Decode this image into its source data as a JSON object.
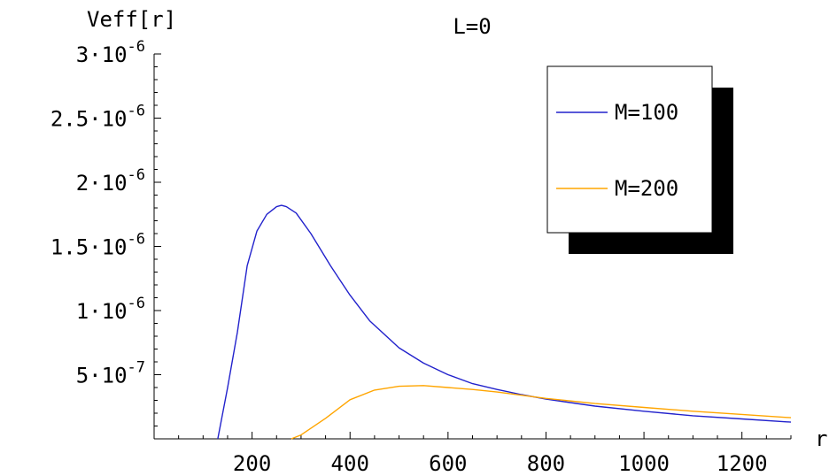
{
  "chart_data": {
    "type": "line",
    "title": "L=0",
    "xlabel": "r",
    "ylabel": "Veff[r]",
    "xlim": [
      0,
      1300
    ],
    "ylim": [
      0,
      3e-06
    ],
    "x_ticks": [
      {
        "value": 200,
        "label": "200"
      },
      {
        "value": 400,
        "label": "400"
      },
      {
        "value": 600,
        "label": "600"
      },
      {
        "value": 800,
        "label": "800"
      },
      {
        "value": 1000,
        "label": "1000"
      },
      {
        "value": 1200,
        "label": "1200"
      }
    ],
    "y_ticks": [
      {
        "value": 5e-07,
        "mantissa": "5·10",
        "exponent": "-7"
      },
      {
        "value": 1e-06,
        "mantissa": "1·10",
        "exponent": "-6"
      },
      {
        "value": 1.5e-06,
        "mantissa": "1.5·10",
        "exponent": "-6"
      },
      {
        "value": 2e-06,
        "mantissa": "2·10",
        "exponent": "-6"
      },
      {
        "value": 2.5e-06,
        "mantissa": "2.5·10",
        "exponent": "-6"
      },
      {
        "value": 3e-06,
        "mantissa": "3·10",
        "exponent": "-6"
      }
    ],
    "legend_position": "top-right",
    "series": [
      {
        "name": "M=100",
        "color": "#2222cc",
        "x": [
          130,
          150,
          170,
          190,
          210,
          230,
          250,
          260,
          270,
          290,
          320,
          360,
          400,
          440,
          500,
          550,
          600,
          650,
          700,
          750,
          800,
          900,
          1000,
          1100,
          1200,
          1300
        ],
        "y": [
          0,
          4e-07,
          8.3e-07,
          1.35e-06,
          1.62e-06,
          1.75e-06,
          1.81e-06,
          1.82e-06,
          1.81e-06,
          1.76e-06,
          1.6e-06,
          1.35e-06,
          1.12e-06,
          9.2e-07,
          7.1e-07,
          5.9e-07,
          5e-07,
          4.3e-07,
          3.85e-07,
          3.45e-07,
          3.1e-07,
          2.55e-07,
          2.15e-07,
          1.8e-07,
          1.55e-07,
          1.3e-07
        ]
      },
      {
        "name": "M=200",
        "color": "#ffa500",
        "x": [
          280,
          300,
          350,
          400,
          450,
          500,
          550,
          600,
          650,
          700,
          750,
          800,
          900,
          1000,
          1100,
          1200,
          1300
        ],
        "y": [
          0,
          3e-08,
          1.6e-07,
          3.05e-07,
          3.8e-07,
          4.1e-07,
          4.15e-07,
          4e-07,
          3.85e-07,
          3.65e-07,
          3.4e-07,
          3.15e-07,
          2.75e-07,
          2.45e-07,
          2.15e-07,
          1.9e-07,
          1.65e-07
        ]
      }
    ]
  }
}
